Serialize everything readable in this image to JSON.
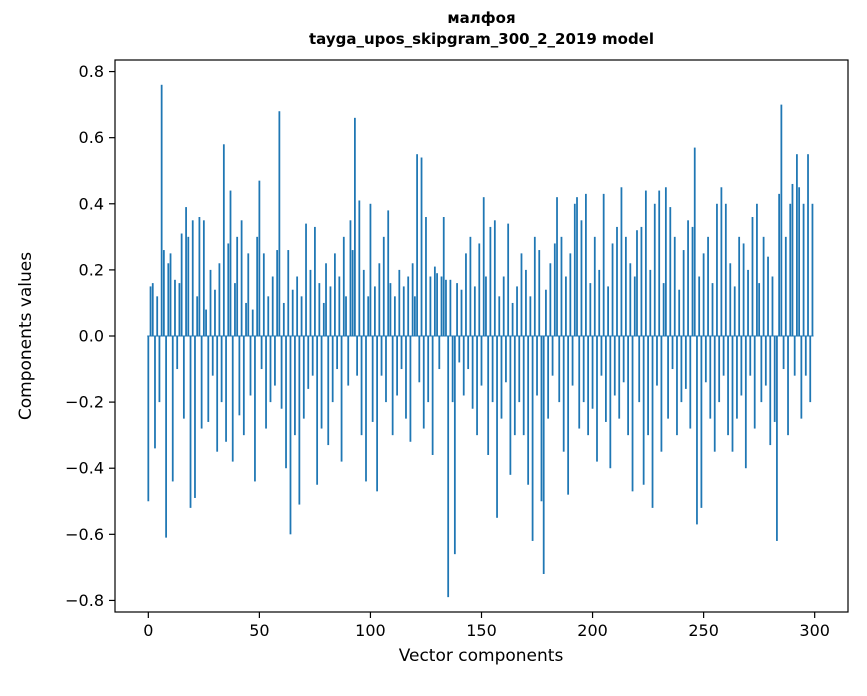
{
  "figure": {
    "background": "#ffffff"
  },
  "title": {
    "line1": "малфоя",
    "line2": "tayga_upos_skipgram_300_2_2019 model"
  },
  "chart_data": {
    "type": "bar",
    "title": "малфоя",
    "subtitle": "tayga_upos_skipgram_300_2_2019 model",
    "xlabel": "Vector components",
    "ylabel": "Components values",
    "xlim": [
      -15,
      315
    ],
    "ylim": [
      -0.835,
      0.835
    ],
    "x_ticks": [
      0,
      50,
      100,
      150,
      200,
      250,
      300
    ],
    "y_ticks": [
      0.8,
      0.6,
      0.4,
      0.2,
      0.0,
      -0.2,
      -0.4,
      -0.6,
      -0.8
    ],
    "y_tick_labels": [
      "0.8",
      "0.6",
      "0.4",
      "0.2",
      "0.0",
      "−0.2",
      "−0.4",
      "−0.6",
      "−0.8"
    ],
    "bar_color": "#1f77b4",
    "grid": false,
    "legend": null,
    "x_start": 0,
    "values": [
      -0.5,
      0.15,
      0.16,
      -0.34,
      0.12,
      -0.2,
      0.76,
      0.26,
      -0.61,
      0.22,
      0.25,
      -0.44,
      0.17,
      -0.1,
      0.16,
      0.31,
      -0.25,
      0.39,
      0.3,
      -0.52,
      0.35,
      -0.49,
      0.12,
      0.36,
      -0.28,
      0.35,
      0.08,
      -0.26,
      0.2,
      -0.12,
      0.14,
      -0.35,
      0.22,
      -0.2,
      0.58,
      -0.32,
      0.28,
      0.44,
      -0.38,
      0.16,
      0.3,
      -0.24,
      0.35,
      -0.3,
      0.1,
      0.25,
      -0.18,
      0.08,
      -0.44,
      0.3,
      0.47,
      -0.1,
      0.25,
      -0.28,
      0.12,
      -0.2,
      0.18,
      -0.15,
      0.26,
      0.68,
      -0.22,
      0.1,
      -0.4,
      0.26,
      -0.6,
      0.14,
      -0.3,
      0.18,
      -0.51,
      0.12,
      -0.25,
      0.34,
      -0.16,
      0.2,
      -0.12,
      0.33,
      -0.45,
      0.16,
      -0.28,
      0.1,
      0.22,
      -0.33,
      0.15,
      -0.2,
      0.25,
      -0.1,
      0.18,
      -0.38,
      0.3,
      0.12,
      -0.15,
      0.35,
      0.26,
      0.66,
      -0.12,
      0.41,
      -0.3,
      0.2,
      -0.44,
      0.12,
      0.4,
      -0.26,
      0.15,
      -0.47,
      0.22,
      -0.12,
      0.3,
      -0.2,
      0.38,
      0.16,
      -0.3,
      0.12,
      -0.18,
      0.2,
      -0.1,
      0.15,
      -0.25,
      0.18,
      -0.32,
      0.22,
      0.12,
      0.55,
      -0.14,
      0.54,
      -0.28,
      0.36,
      -0.2,
      0.18,
      -0.36,
      0.21,
      0.19,
      -0.1,
      0.18,
      0.36,
      0.17,
      -0.79,
      0.17,
      -0.2,
      -0.66,
      0.16,
      -0.08,
      0.14,
      -0.18,
      0.25,
      -0.1,
      0.3,
      -0.22,
      0.15,
      -0.3,
      0.28,
      -0.15,
      0.42,
      0.18,
      -0.36,
      0.33,
      -0.2,
      0.35,
      -0.55,
      0.12,
      -0.25,
      0.18,
      -0.14,
      0.34,
      -0.42,
      0.1,
      -0.3,
      0.15,
      -0.2,
      0.25,
      -0.3,
      0.2,
      -0.45,
      0.12,
      -0.62,
      0.3,
      -0.18,
      0.26,
      -0.5,
      -0.72,
      0.14,
      -0.25,
      0.22,
      -0.12,
      0.28,
      0.42,
      -0.2,
      0.3,
      -0.35,
      0.18,
      -0.48,
      0.25,
      -0.15,
      0.4,
      0.42,
      -0.28,
      0.35,
      -0.2,
      0.43,
      -0.3,
      0.16,
      -0.22,
      0.3,
      -0.38,
      0.2,
      -0.12,
      0.43,
      -0.26,
      0.15,
      -0.4,
      0.28,
      -0.18,
      0.33,
      -0.25,
      0.45,
      -0.14,
      0.3,
      -0.3,
      0.22,
      -0.47,
      0.18,
      0.32,
      -0.2,
      0.33,
      -0.45,
      0.44,
      -0.3,
      0.2,
      -0.52,
      0.4,
      -0.15,
      0.44,
      -0.35,
      0.16,
      0.45,
      -0.25,
      0.39,
      -0.1,
      0.3,
      -0.3,
      0.14,
      -0.2,
      0.26,
      -0.16,
      0.35,
      -0.28,
      0.33,
      0.57,
      -0.57,
      0.18,
      -0.52,
      0.25,
      -0.14,
      0.3,
      -0.25,
      0.16,
      -0.35,
      0.4,
      -0.2,
      0.45,
      -0.12,
      0.4,
      -0.3,
      0.22,
      -0.35,
      0.15,
      -0.25,
      0.3,
      -0.18,
      0.28,
      -0.4,
      0.2,
      -0.12,
      0.36,
      -0.28,
      0.4,
      0.16,
      -0.2,
      0.3,
      -0.15,
      0.24,
      -0.33,
      0.18,
      -0.26,
      -0.62,
      0.43,
      0.7,
      -0.1,
      0.3,
      -0.3,
      0.4,
      0.46,
      -0.12,
      0.55,
      0.45,
      -0.25,
      0.4,
      -0.12,
      0.55,
      -0.2,
      0.4
    ]
  }
}
